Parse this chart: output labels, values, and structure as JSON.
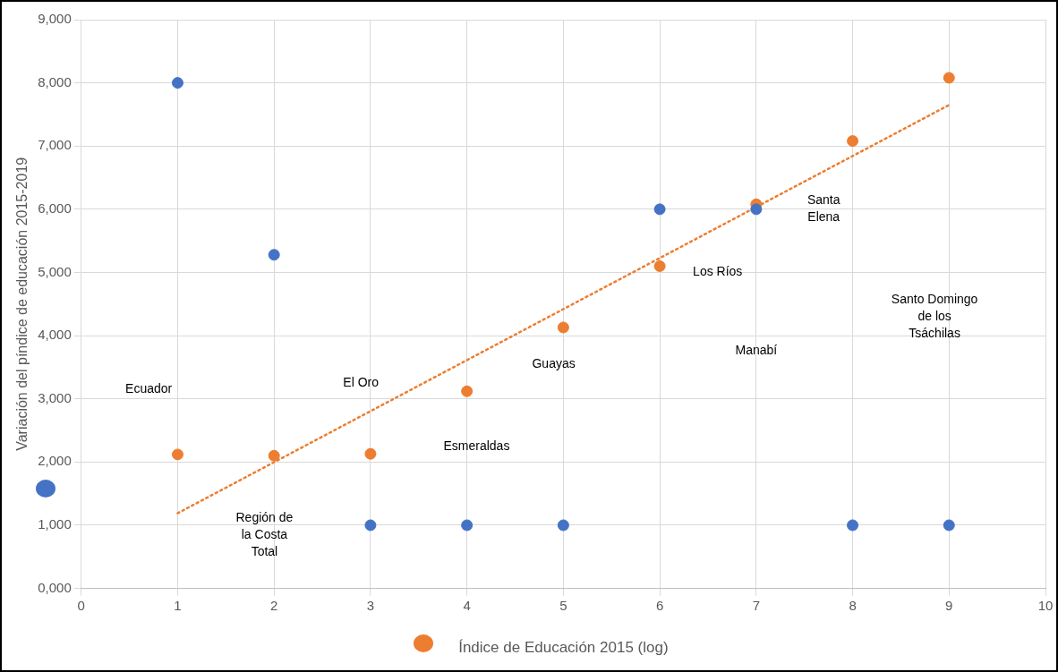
{
  "chart_data": {
    "type": "scatter",
    "xlabel": "Índice de Educación 2015 (log)",
    "ylabel": "Variación del píndice de educación 2015-2019",
    "xlim": [
      0,
      10
    ],
    "xticks": [
      0,
      1,
      2,
      3,
      4,
      5,
      6,
      7,
      8,
      9,
      10
    ],
    "ylim": [
      0,
      9000
    ],
    "yticks": [
      {
        "value": 0,
        "label": "0,000"
      },
      {
        "value": 1000,
        "label": "1,000"
      },
      {
        "value": 2000,
        "label": "2,000"
      },
      {
        "value": 3000,
        "label": "3,000"
      },
      {
        "value": 4000,
        "label": "4,000"
      },
      {
        "value": 5000,
        "label": "5,000"
      },
      {
        "value": 6000,
        "label": "6,000"
      },
      {
        "value": 7000,
        "label": "7,000"
      },
      {
        "value": 8000,
        "label": "8,000"
      },
      {
        "value": 9000,
        "label": "9,000"
      }
    ],
    "grid": true,
    "legend": false,
    "marker": "circle",
    "series": [
      {
        "color": "#4472c4",
        "x": [
          1,
          2,
          3,
          4,
          5,
          6,
          7,
          8,
          9
        ],
        "values": [
          8000,
          5280,
          1000,
          1000,
          1000,
          6000,
          6000,
          1000,
          1000
        ]
      },
      {
        "color": "#ed7d31",
        "x": [
          1,
          2,
          3,
          4,
          5,
          6,
          7,
          8,
          9
        ],
        "values": [
          2120,
          2100,
          2130,
          3120,
          4130,
          5100,
          6080,
          7080,
          8080
        ]
      },
      {
        "type": "line",
        "color": "#ed7d31",
        "line_style": "dotted",
        "marker": "none",
        "x": [
          1,
          9
        ],
        "values": [
          1190,
          7650
        ]
      }
    ],
    "annotations": [
      "Ecuador",
      "Región de\nla Costa\nTotal",
      "El Oro",
      "Esmeraldas",
      "Guayas",
      "Los Ríos",
      "Manabí",
      "Santa\nElena",
      "Santo Domingo\nde los\nTsáchilas"
    ]
  }
}
